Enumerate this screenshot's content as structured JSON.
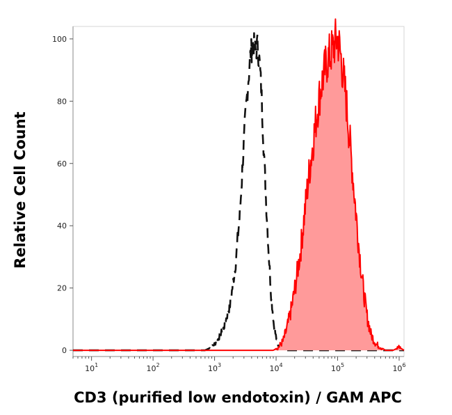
{
  "chart_data": {
    "type": "area",
    "xlabel": "CD3 (purified low endotoxin) / GAM APC",
    "ylabel": "Relative Cell Count",
    "x_scale": "log",
    "xlim": [
      5,
      1200000
    ],
    "ylim": [
      -2,
      104
    ],
    "grid": false,
    "y_ticks": [
      0,
      20,
      40,
      60,
      80,
      100
    ],
    "x_ticks": [
      {
        "value": 10,
        "base": "10",
        "exp": "1"
      },
      {
        "value": 100,
        "base": "10",
        "exp": "2"
      },
      {
        "value": 1000,
        "base": "10",
        "exp": "3"
      },
      {
        "value": 10000,
        "base": "10",
        "exp": "4"
      },
      {
        "value": 100000,
        "base": "10",
        "exp": "5"
      },
      {
        "value": 1000000,
        "base": "10",
        "exp": "6"
      }
    ],
    "series": [
      {
        "style": "dashed-line",
        "color": "#111111",
        "x": [
          5,
          700,
          900,
          1100,
          1400,
          1800,
          2200,
          2600,
          2900,
          3200,
          3500,
          3800,
          4200,
          4600,
          5000,
          5400,
          5800,
          6200,
          6800,
          7500,
          8300,
          9200,
          10500,
          12000,
          14000,
          20000,
          1200000
        ],
        "y": [
          0,
          0,
          1,
          3,
          7,
          15,
          28,
          45,
          62,
          76,
          86,
          94,
          99,
          96,
          98,
          92,
          82,
          68,
          50,
          33,
          18,
          8,
          2,
          0.5,
          0,
          0,
          0
        ]
      },
      {
        "style": "filled-area",
        "color": "#ff0000",
        "fill": "#ff9a9a",
        "x": [
          5,
          9000,
          11000,
          13000,
          15000,
          18000,
          21000,
          25000,
          29000,
          34000,
          40000,
          46000,
          52000,
          60000,
          68000,
          76000,
          84000,
          92000,
          100000,
          110000,
          120000,
          135000,
          150000,
          170000,
          195000,
          225000,
          260000,
          300000,
          350000,
          420000,
          500000,
          600000,
          800000,
          1000000,
          1200000
        ],
        "y": [
          0,
          0,
          1,
          3,
          7,
          14,
          22,
          32,
          44,
          56,
          67,
          76,
          83,
          89,
          93,
          95,
          97,
          99,
          100,
          96,
          90,
          82,
          72,
          60,
          46,
          32,
          20,
          11,
          5,
          2,
          1,
          0,
          0,
          1,
          0
        ]
      }
    ]
  }
}
